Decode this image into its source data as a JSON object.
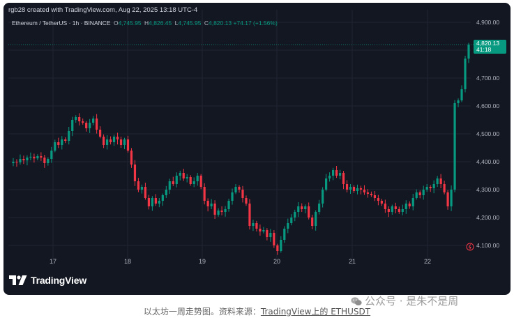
{
  "header": {
    "created_line": "rgb28 created with TradingView.com, Aug 22, 2025 13:18 UTC-4",
    "symbol": "Ethereum / TetherUS · 1h · BINANCE",
    "ohlc": {
      "o_label": "O",
      "o": "4,745.95",
      "h_label": "H",
      "h": "4,826.45",
      "l_label": "L",
      "l": "4,745.95",
      "c_label": "C",
      "c": "4,820.13",
      "change": "+74.17 (+1.56%)"
    }
  },
  "price_tag": {
    "price": "4,820.13",
    "countdown": "41:18"
  },
  "brand": {
    "name": "TradingView"
  },
  "watermark": {
    "text": "公众号 · 是朱不是周",
    "icon": "wechat-icon"
  },
  "caption": {
    "text": "以太坊一周走势图。资料来源：",
    "link": "TradingView上的 ETHUSDT"
  },
  "colors": {
    "background": "#131722",
    "up": "#089981",
    "down": "#f23645",
    "text": "#d1d4dc"
  },
  "chart_data": {
    "type": "candlestick",
    "title": "Ethereum / TetherUS · 1h · BINANCE",
    "y_axis": {
      "side": "right",
      "ticks": [
        4100,
        4200,
        4300,
        4400,
        4500,
        4600,
        4700,
        4800,
        4900
      ],
      "tick_labels": [
        "4,100.00",
        "4,200.00",
        "4,300.00",
        "4,400.00",
        "4,500.00",
        "4,600.00",
        "4,700.00",
        "4,800.00",
        "4,900.00"
      ],
      "ylim": [
        4060,
        4920
      ]
    },
    "x_axis": {
      "tick_labels": [
        "17",
        "18",
        "19",
        "20",
        "21",
        "22"
      ]
    },
    "last_price": 4820.13,
    "grid": true,
    "close_path": [
      [
        0,
        4395
      ],
      [
        1,
        4400
      ],
      [
        2,
        4398
      ],
      [
        3,
        4410
      ],
      [
        4,
        4405
      ],
      [
        5,
        4415
      ],
      [
        6,
        4418
      ],
      [
        7,
        4412
      ],
      [
        8,
        4420
      ],
      [
        9,
        4415
      ],
      [
        10,
        4395
      ],
      [
        11,
        4410
      ],
      [
        12,
        4440
      ],
      [
        13,
        4470
      ],
      [
        14,
        4460
      ],
      [
        15,
        4480
      ],
      [
        16,
        4475
      ],
      [
        17,
        4510
      ],
      [
        18,
        4550
      ],
      [
        19,
        4560
      ],
      [
        20,
        4545
      ],
      [
        21,
        4540
      ],
      [
        22,
        4520
      ],
      [
        23,
        4540
      ],
      [
        24,
        4555
      ],
      [
        25,
        4515
      ],
      [
        26,
        4490
      ],
      [
        27,
        4460
      ],
      [
        28,
        4480
      ],
      [
        29,
        4470
      ],
      [
        30,
        4490
      ],
      [
        31,
        4480
      ],
      [
        32,
        4460
      ],
      [
        33,
        4480
      ],
      [
        34,
        4440
      ],
      [
        35,
        4390
      ],
      [
        36,
        4330
      ],
      [
        37,
        4300
      ],
      [
        38,
        4310
      ],
      [
        39,
        4270
      ],
      [
        40,
        4240
      ],
      [
        41,
        4270
      ],
      [
        42,
        4250
      ],
      [
        43,
        4260
      ],
      [
        44,
        4280
      ],
      [
        45,
        4300
      ],
      [
        46,
        4330
      ],
      [
        47,
        4320
      ],
      [
        48,
        4350
      ],
      [
        49,
        4360
      ],
      [
        50,
        4340
      ],
      [
        51,
        4345
      ],
      [
        52,
        4320
      ],
      [
        53,
        4330
      ],
      [
        54,
        4350
      ],
      [
        55,
        4310
      ],
      [
        56,
        4260
      ],
      [
        57,
        4240
      ],
      [
        58,
        4250
      ],
      [
        59,
        4210
      ],
      [
        60,
        4225
      ],
      [
        61,
        4220
      ],
      [
        62,
        4230
      ],
      [
        63,
        4260
      ],
      [
        64,
        4290
      ],
      [
        65,
        4310
      ],
      [
        66,
        4300
      ],
      [
        67,
        4270
      ],
      [
        68,
        4250
      ],
      [
        69,
        4170
      ],
      [
        70,
        4180
      ],
      [
        71,
        4160
      ],
      [
        72,
        4150
      ],
      [
        73,
        4155
      ],
      [
        74,
        4130
      ],
      [
        75,
        4145
      ],
      [
        76,
        4100
      ],
      [
        77,
        4080
      ],
      [
        78,
        4120
      ],
      [
        79,
        4160
      ],
      [
        80,
        4180
      ],
      [
        81,
        4200
      ],
      [
        82,
        4220
      ],
      [
        83,
        4240
      ],
      [
        84,
        4230
      ],
      [
        85,
        4240
      ],
      [
        86,
        4200
      ],
      [
        87,
        4170
      ],
      [
        88,
        4220
      ],
      [
        89,
        4250
      ],
      [
        90,
        4300
      ],
      [
        91,
        4340
      ],
      [
        92,
        4350
      ],
      [
        93,
        4370
      ],
      [
        94,
        4350
      ],
      [
        95,
        4360
      ],
      [
        96,
        4320
      ],
      [
        97,
        4300
      ],
      [
        98,
        4310
      ],
      [
        99,
        4295
      ],
      [
        100,
        4305
      ],
      [
        101,
        4300
      ],
      [
        102,
        4290
      ],
      [
        103,
        4285
      ],
      [
        104,
        4280
      ],
      [
        105,
        4270
      ],
      [
        106,
        4260
      ],
      [
        107,
        4250
      ],
      [
        108,
        4230
      ],
      [
        109,
        4220
      ],
      [
        110,
        4240
      ],
      [
        111,
        4230
      ],
      [
        112,
        4220
      ],
      [
        113,
        4230
      ],
      [
        114,
        4250
      ],
      [
        115,
        4240
      ],
      [
        116,
        4270
      ],
      [
        117,
        4290
      ],
      [
        118,
        4280
      ],
      [
        119,
        4300
      ],
      [
        120,
        4310
      ],
      [
        121,
        4305
      ],
      [
        122,
        4320
      ],
      [
        123,
        4340
      ],
      [
        124,
        4320
      ],
      [
        125,
        4290
      ],
      [
        126,
        4240
      ],
      [
        127,
        4300
      ],
      [
        128,
        4610
      ],
      [
        129,
        4620
      ],
      [
        130,
        4660
      ],
      [
        131,
        4770
      ],
      [
        132,
        4820.13
      ]
    ]
  }
}
